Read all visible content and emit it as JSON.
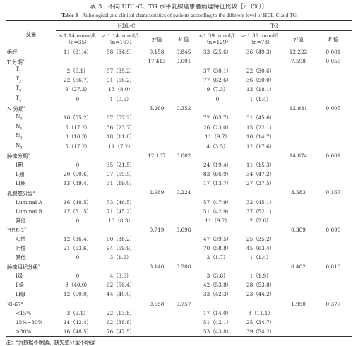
{
  "title_cn": "表 3　不同 HDL-C、TG 水平乳腺癌患者病理特征比较［n（%）］",
  "title_en_label": "Table 3",
  "title_en": "Pathological and clinical characteristics of patients according to the different level of HDL-C and TG",
  "header": {
    "variable": "变量",
    "groups": [
      "HDL-C",
      "TG"
    ],
    "columns": [
      [
        "<1.14 mmol/L",
        "（n=35）"
      ],
      [
        "≥ 1.14 mmol/L",
        "（n=167）"
      ],
      [
        "χ²值"
      ],
      [
        "P 值"
      ],
      [
        "<1.39 mmol/L",
        "（n=129）"
      ],
      [
        "≥ 1.39 mmol/L",
        "（n=73）"
      ],
      [
        "χ²值"
      ],
      [
        "P 值"
      ]
    ]
  },
  "sections": [
    {
      "label": "绝经",
      "cells": [
        "11（31.4）",
        "58（34.9）",
        "0.158",
        "0.845",
        "33（25.6）",
        "36（49.3）",
        "12.222",
        "0.001"
      ]
    },
    {
      "label": "T 分期",
      "sup": "a",
      "cells": [
        null,
        null,
        "17.413",
        "0.001",
        null,
        null,
        "7.598",
        "0.055"
      ],
      "items": [
        {
          "label": "T",
          "sub": "1",
          "cells": [
            "2（6.1）",
            "57（35.2）",
            null,
            null,
            "37（30.1）",
            "22（30.6）",
            null,
            null
          ]
        },
        {
          "label": "T",
          "sub": "2",
          "cells": [
            "22（66.7）",
            "91（56.2）",
            null,
            null,
            "77（62.6）",
            "36（50.0）",
            null,
            null
          ]
        },
        {
          "label": "T",
          "sub": "3",
          "cells": [
            "9（27.3）",
            "13（8.0）",
            null,
            null,
            "9（7.3）",
            "13（18.1）",
            null,
            null
          ]
        },
        {
          "label": "T",
          "sub": "4",
          "cells": [
            "0",
            "1（0.6）",
            null,
            null,
            "0",
            "1（1.4）",
            null,
            null
          ]
        }
      ]
    },
    {
      "label": "N 分期",
      "sup": "a",
      "cells": [
        null,
        null,
        "3.269",
        "0.352",
        null,
        null,
        "12.931",
        "0.005"
      ],
      "items": [
        {
          "label": "N",
          "sub": "0",
          "cells": [
            "16（55.2）",
            "87（57.2）",
            null,
            null,
            "72（63.7）",
            "31（45.6）",
            null,
            null
          ]
        },
        {
          "label": "N",
          "sub": "1",
          "cells": [
            "5（17.2）",
            "36（23.7）",
            null,
            null,
            "26（23.0）",
            "15（22.1）",
            null,
            null
          ]
        },
        {
          "label": "N",
          "sub": "2",
          "cells": [
            "3（10.3）",
            "18（11.8）",
            null,
            null,
            "11（9.7）",
            "10（14.7）",
            null,
            null
          ]
        },
        {
          "label": "N",
          "sub": "3",
          "cells": [
            "5（17.2）",
            "11（7.2）",
            null,
            null,
            "4（3.5）",
            "12（17.6）",
            null,
            null
          ]
        }
      ]
    },
    {
      "label": "肿瘤分期",
      "sup": "a",
      "cells": [
        null,
        null,
        "12.167",
        "0.002",
        null,
        null,
        "14.874",
        "0.001"
      ],
      "items": [
        {
          "label": "Ⅰ期",
          "cells": [
            "0",
            "35（21.5）",
            null,
            null,
            "24（19.4）",
            "11（15.3）",
            null,
            null
          ]
        },
        {
          "label": "Ⅱ期",
          "cells": [
            "20（60.6）",
            "97（59.5）",
            null,
            null,
            "83（66.9）",
            "34（47.2）",
            null,
            null
          ]
        },
        {
          "label": "Ⅲ期",
          "cells": [
            "13（39.4）",
            "31（19.0）",
            null,
            null,
            "17（13.7）",
            "27（37.5）",
            null,
            null
          ]
        }
      ]
    },
    {
      "label": "乳腺癌分型",
      "sup": "a",
      "cells": [
        null,
        null,
        "2.989",
        "0.224",
        null,
        null,
        "3.583",
        "0.167"
      ],
      "items": [
        {
          "label": "Luminal A",
          "cells": [
            "16（48.5）",
            "73（46.5）",
            null,
            null,
            "57（47.9）",
            "32（45.1）",
            null,
            null
          ]
        },
        {
          "label": "Luminal B",
          "cells": [
            "17（51.5）",
            "71（45.2）",
            null,
            null,
            "51（42.9）",
            "37（52.1）",
            null,
            null
          ]
        },
        {
          "label": "其他",
          "cells": [
            "0",
            "13（8.3）",
            null,
            null,
            "11（9.2）",
            "2（2.8）",
            null,
            null
          ]
        }
      ]
    },
    {
      "label": "HER-2",
      "sup": "a",
      "cells": [
        null,
        null,
        "0.719",
        "0.698",
        null,
        null,
        "0.389",
        "0.698"
      ],
      "items": [
        {
          "label": "阳性",
          "cells": [
            "12（36.4）",
            "60（38.2）",
            null,
            null,
            "47（39.5）",
            "25（35.2）",
            null,
            null
          ]
        },
        {
          "label": "阴性",
          "cells": [
            "21（63.6）",
            "94（59.9）",
            null,
            null,
            "70（58.8）",
            "45（63.4）",
            null,
            null
          ]
        },
        {
          "label": "其他",
          "cells": [
            "0",
            "3（1.9）",
            null,
            null,
            "2（1.7）",
            "1（1.4）",
            null,
            null
          ]
        }
      ]
    },
    {
      "label": "肿瘤组织分级",
      "sup": "a",
      "cells": [
        null,
        null,
        "3.140",
        "0.208",
        null,
        null,
        "0.402",
        "0.818"
      ],
      "items": [
        {
          "label": "Ⅰ级",
          "cells": [
            "0",
            "4（3.6）",
            null,
            null,
            "3（3.8）",
            "1（1.9）",
            null,
            null
          ]
        },
        {
          "label": "Ⅱ级",
          "cells": [
            "8（40.0）",
            "62（56.4）",
            null,
            null,
            "42（53.8）",
            "28（53.8）",
            null,
            null
          ]
        },
        {
          "label": "Ⅲ级",
          "cells": [
            "12（60.0）",
            "44（40.0）",
            null,
            null,
            "33（42.3）",
            "23（44.2）",
            null,
            null
          ]
        }
      ]
    },
    {
      "label": "Ki-67",
      "sup": "a",
      "cells": [
        null,
        null,
        "0.558",
        "0.757",
        null,
        null,
        "1.950",
        "0.377"
      ],
      "items": [
        {
          "label": "<15%",
          "cells": [
            "3（9.1）",
            "22（13.8）",
            null,
            null,
            "17（14.0）",
            "8（11.1）",
            null,
            null
          ]
        },
        {
          "label": "15%~30%",
          "cells": [
            "14（42.4）",
            "62（38.8）",
            null,
            null,
            "51（42.1）",
            "25（34.7）",
            null,
            null
          ]
        },
        {
          "label": ">30%",
          "cells": [
            "16（48.5）",
            "76（47.5）",
            null,
            null,
            "53（43.8）",
            "39（54.2）",
            null,
            null
          ]
        }
      ]
    }
  ],
  "note": {
    "prefix": "注：",
    "sup": "a",
    "text": "为数据不明确、缺失或分型不明确"
  }
}
